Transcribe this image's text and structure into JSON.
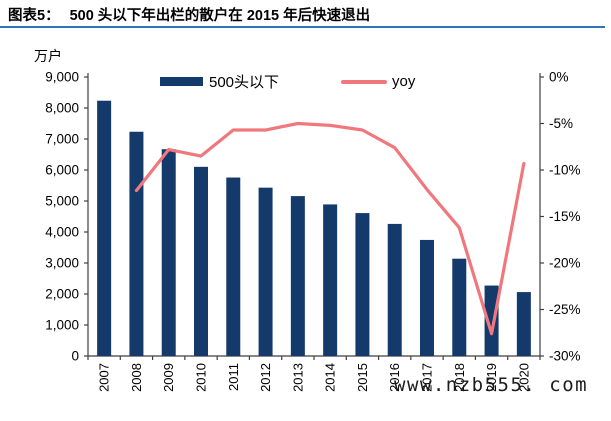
{
  "figure": {
    "label": "图表5：",
    "title": "500 头以下年出栏的散户在 2015 年后快速退出"
  },
  "legend": {
    "bar_label": "500头以下",
    "line_label": "yoy"
  },
  "watermark": "www.nzb555. com",
  "colors": {
    "bar": "#14396B",
    "line": "#F0787D",
    "title_rule": "#2E75B6",
    "axis": "#3F3F3F",
    "tick_text": "#000000"
  },
  "chart_data": {
    "type": "combo-bar-line",
    "categories": [
      "2007",
      "2008",
      "2009",
      "2010",
      "2011",
      "2012",
      "2013",
      "2014",
      "2015",
      "2016",
      "2017",
      "2018",
      "2019",
      "2020"
    ],
    "series": [
      {
        "name": "500头以下",
        "type": "bar",
        "axis": "left",
        "color": "#14396B",
        "values": [
          8235,
          7234,
          6671,
          6102,
          5757,
          5430,
          5158,
          4890,
          4610,
          4261,
          3744,
          3139,
          2273,
          2062
        ]
      },
      {
        "name": "yoy",
        "type": "line",
        "axis": "right",
        "color": "#F0787D",
        "values": [
          null,
          -12.2,
          -7.8,
          -8.5,
          -5.7,
          -5.7,
          -5.0,
          -5.2,
          -5.7,
          -7.6,
          -12.1,
          -16.2,
          -27.6,
          -9.3
        ]
      }
    ],
    "left_axis": {
      "title": "万户",
      "min": 0,
      "max": 9000,
      "step": 1000,
      "tick_labels": [
        "9,000",
        "8,000",
        "7,000",
        "6,000",
        "5,000",
        "4,000",
        "3,000",
        "2,000",
        "1,000",
        "0"
      ]
    },
    "right_axis": {
      "min": -30,
      "max": 0,
      "step": 5,
      "tick_labels": [
        "0%",
        "-5%",
        "-10%",
        "-15%",
        "-20%",
        "-25%",
        "-30%"
      ]
    },
    "grid": false,
    "legend_position": "top-center"
  }
}
